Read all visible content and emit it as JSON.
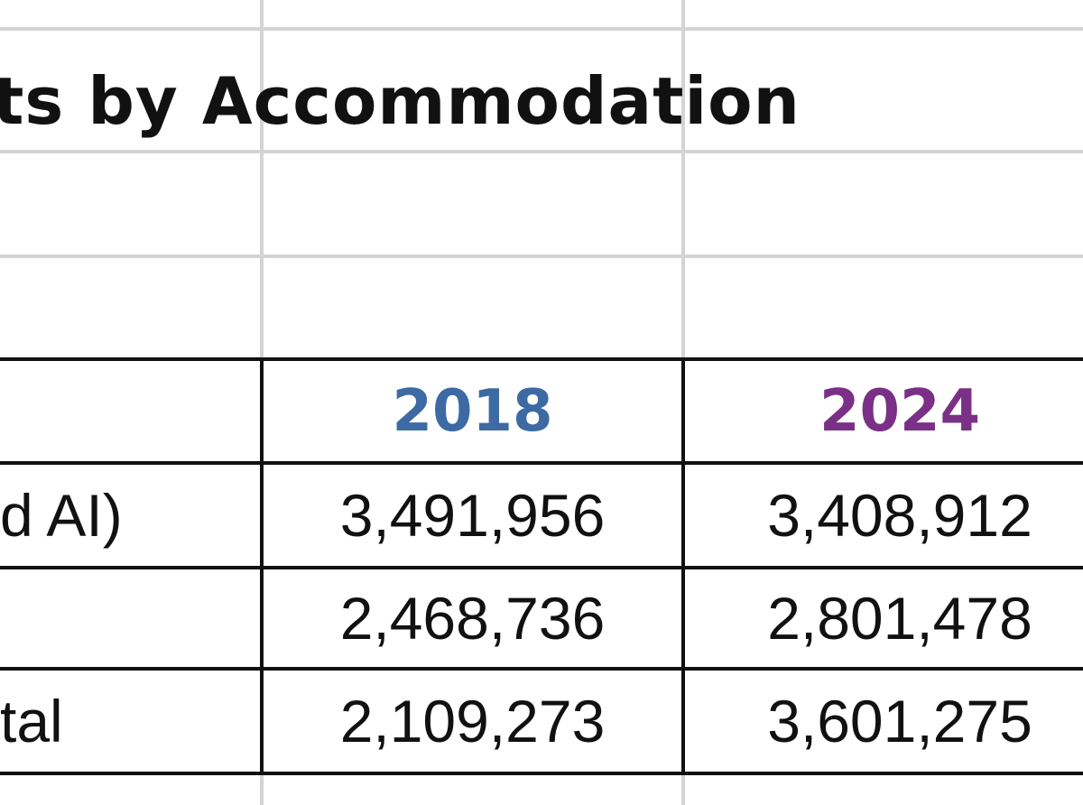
{
  "sheet": {
    "title": "ts by Accommodation",
    "colors": {
      "year_2018": "#3d6aa3",
      "year_2024": "#7a3087",
      "gridline": "#d4d4d4",
      "border": "#111111"
    },
    "table": {
      "headers": [
        "",
        "2018",
        "2024"
      ],
      "rows": [
        {
          "label": "d AI)",
          "v2018": "3,491,956",
          "v2024": "3,408,912"
        },
        {
          "label": "",
          "v2018": "2,468,736",
          "v2024": "2,801,478"
        },
        {
          "label": "tal",
          "v2018": "2,109,273",
          "v2024": "3,601,275"
        }
      ]
    }
  }
}
